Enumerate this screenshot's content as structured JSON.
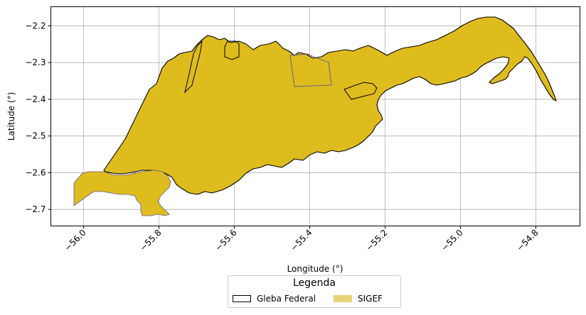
{
  "map": {
    "x_axis_title": "Longitude (°)",
    "y_axis_title": "Latitude (°)",
    "x_ticks": [
      -56.0,
      -55.8,
      -55.6,
      -55.4,
      -55.2,
      -55.0,
      -54.8
    ],
    "x_tick_labels": [
      "−56.0",
      "−55.8",
      "−55.6",
      "−55.4",
      "−55.2",
      "−55.0",
      "−54.8"
    ],
    "y_ticks": [
      -2.2,
      -2.3,
      -2.4,
      -2.5,
      -2.6,
      -2.7
    ],
    "y_tick_labels": [
      "−2.2",
      "−2.3",
      "−2.4",
      "−2.5",
      "−2.6",
      "−2.7"
    ],
    "x_range": [
      -56.087,
      -54.683
    ],
    "y_range": [
      -2.745,
      -2.148
    ],
    "grid": true,
    "fill_color": "#DFBC1E",
    "outline_color": "#000000"
  },
  "legend": {
    "title": "Legenda",
    "items": [
      {
        "label": "Gleba Federal",
        "style": "outline"
      },
      {
        "label": "SIGEF",
        "style": "filled",
        "color": "#E8D27A"
      }
    ]
  }
}
